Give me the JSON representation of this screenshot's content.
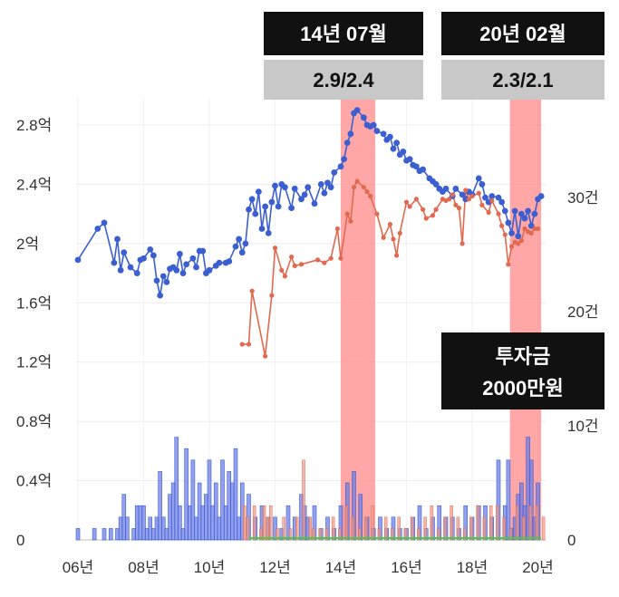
{
  "chart_data": {
    "type": "line",
    "xlabel": "",
    "ylabel": "",
    "x_ticks": [
      "06년",
      "08년",
      "10년",
      "12년",
      "14년",
      "16년",
      "18년",
      "20년"
    ],
    "xlim": [
      2006,
      2021
    ],
    "y_left_ticks": [
      "0",
      "0.4억",
      "0.8억",
      "1.2억",
      "1.6억",
      "2억",
      "2.4억",
      "2.8억"
    ],
    "ylim_left": [
      0,
      2.8
    ],
    "y_right_ticks": [
      "0",
      "10건",
      "20건",
      "30건"
    ],
    "ylim_right": [
      0,
      30
    ],
    "grid": true,
    "highlights": [
      {
        "from": 2014.0,
        "to": 2015.05,
        "label": "14년 07월",
        "value": "2.9/2.4"
      },
      {
        "from": 2019.15,
        "to": 2020.1,
        "label": "20년 02월",
        "value": "2.3/2.1"
      }
    ],
    "annotation": {
      "line1": "투자금",
      "line2": "2000만원"
    },
    "colors": {
      "sale": "#3b5fd1",
      "jeonse": "#e0694f",
      "volume_sale": "#6677e6",
      "volume_jeonse": "#ee9a8a",
      "highlight": "#ff8a8a",
      "flat": "#44cc44"
    },
    "series": [
      {
        "kind": "line",
        "color_key": "sale",
        "points": [
          [
            2006.0,
            1.89
          ],
          [
            2006.6,
            2.1
          ],
          [
            2006.8,
            2.14
          ],
          [
            2007.1,
            1.87
          ],
          [
            2007.2,
            2.03
          ],
          [
            2007.3,
            1.82
          ],
          [
            2007.4,
            1.94
          ],
          [
            2007.6,
            1.84
          ],
          [
            2007.8,
            1.8
          ],
          [
            2007.9,
            1.89
          ],
          [
            2008.0,
            1.9
          ],
          [
            2008.2,
            1.96
          ],
          [
            2008.3,
            1.92
          ],
          [
            2008.4,
            1.75
          ],
          [
            2008.5,
            1.65
          ],
          [
            2008.6,
            1.78
          ],
          [
            2008.7,
            1.74
          ],
          [
            2008.8,
            1.83
          ],
          [
            2008.9,
            1.84
          ],
          [
            2009.0,
            1.82
          ],
          [
            2009.1,
            1.93
          ],
          [
            2009.2,
            1.8
          ],
          [
            2009.3,
            1.86
          ],
          [
            2009.5,
            1.9
          ],
          [
            2009.6,
            1.84
          ],
          [
            2009.7,
            1.95
          ],
          [
            2009.8,
            1.95
          ],
          [
            2009.9,
            1.8
          ],
          [
            2010.0,
            1.82
          ],
          [
            2010.2,
            1.85
          ],
          [
            2010.3,
            1.87
          ],
          [
            2010.5,
            1.87
          ],
          [
            2010.6,
            1.88
          ],
          [
            2010.8,
            1.98
          ],
          [
            2010.9,
            2.03
          ],
          [
            2011.0,
            1.94
          ],
          [
            2011.1,
            2.0
          ],
          [
            2011.2,
            2.23
          ],
          [
            2011.3,
            2.3
          ],
          [
            2011.4,
            2.2
          ],
          [
            2011.5,
            2.35
          ],
          [
            2011.6,
            2.1
          ],
          [
            2011.7,
            2.25
          ],
          [
            2011.8,
            2.07
          ],
          [
            2011.9,
            2.28
          ],
          [
            2012.0,
            2.39
          ],
          [
            2012.1,
            2.25
          ],
          [
            2012.2,
            2.4
          ],
          [
            2012.3,
            2.38
          ],
          [
            2012.5,
            2.24
          ],
          [
            2012.6,
            2.37
          ],
          [
            2012.8,
            2.3
          ],
          [
            2012.9,
            2.33
          ],
          [
            2013.0,
            2.38
          ],
          [
            2013.2,
            2.27
          ],
          [
            2013.4,
            2.4
          ],
          [
            2013.5,
            2.34
          ],
          [
            2013.6,
            2.41
          ],
          [
            2013.7,
            2.38
          ],
          [
            2013.8,
            2.48
          ],
          [
            2014.0,
            2.52
          ],
          [
            2014.1,
            2.57
          ],
          [
            2014.2,
            2.68
          ],
          [
            2014.3,
            2.74
          ],
          [
            2014.4,
            2.88
          ],
          [
            2014.5,
            2.9
          ],
          [
            2014.7,
            2.85
          ],
          [
            2014.8,
            2.8
          ],
          [
            2014.9,
            2.79
          ],
          [
            2015.0,
            2.8
          ],
          [
            2015.1,
            2.76
          ],
          [
            2015.3,
            2.74
          ],
          [
            2015.4,
            2.7
          ],
          [
            2015.5,
            2.72
          ],
          [
            2015.6,
            2.64
          ],
          [
            2015.7,
            2.68
          ],
          [
            2015.8,
            2.6
          ],
          [
            2015.9,
            2.62
          ],
          [
            2016.0,
            2.56
          ],
          [
            2016.1,
            2.57
          ],
          [
            2016.2,
            2.53
          ],
          [
            2016.3,
            2.52
          ],
          [
            2016.4,
            2.49
          ],
          [
            2016.5,
            2.5
          ],
          [
            2016.7,
            2.44
          ],
          [
            2016.8,
            2.42
          ],
          [
            2016.9,
            2.4
          ],
          [
            2017.0,
            2.37
          ],
          [
            2017.1,
            2.35
          ],
          [
            2017.2,
            2.37
          ],
          [
            2017.4,
            2.32
          ],
          [
            2017.5,
            2.37
          ],
          [
            2017.7,
            2.33
          ],
          [
            2017.8,
            2.3
          ],
          [
            2017.9,
            2.35
          ],
          [
            2018.0,
            2.33
          ],
          [
            2018.2,
            2.44
          ],
          [
            2018.3,
            2.4
          ],
          [
            2018.4,
            2.31
          ],
          [
            2018.5,
            2.28
          ],
          [
            2018.6,
            2.32
          ],
          [
            2018.8,
            2.31
          ],
          [
            2018.9,
            2.28
          ],
          [
            2019.0,
            2.22
          ],
          [
            2019.1,
            2.14
          ],
          [
            2019.2,
            2.07
          ],
          [
            2019.3,
            2.22
          ],
          [
            2019.4,
            2.05
          ],
          [
            2019.5,
            2.2
          ],
          [
            2019.6,
            2.17
          ],
          [
            2019.7,
            2.22
          ],
          [
            2019.8,
            2.12
          ],
          [
            2019.9,
            2.2
          ],
          [
            2020.0,
            2.3
          ],
          [
            2020.1,
            2.32
          ]
        ]
      },
      {
        "kind": "line",
        "color_key": "jeonse",
        "points": [
          [
            2011.0,
            1.32
          ],
          [
            2011.2,
            1.32
          ],
          [
            2011.3,
            1.68
          ],
          [
            2011.7,
            1.24
          ],
          [
            2011.9,
            1.65
          ],
          [
            2012.0,
            1.97
          ],
          [
            2012.2,
            1.82
          ],
          [
            2012.3,
            1.78
          ],
          [
            2012.5,
            1.91
          ],
          [
            2012.6,
            1.85
          ],
          [
            2012.8,
            1.86
          ],
          [
            2013.3,
            1.89
          ],
          [
            2013.5,
            1.87
          ],
          [
            2013.7,
            1.9
          ],
          [
            2013.9,
            2.1
          ],
          [
            2014.0,
            1.9
          ],
          [
            2014.2,
            2.2
          ],
          [
            2014.3,
            2.15
          ],
          [
            2014.4,
            2.38
          ],
          [
            2014.5,
            2.42
          ],
          [
            2014.7,
            2.38
          ],
          [
            2014.8,
            2.35
          ],
          [
            2014.9,
            2.32
          ],
          [
            2015.1,
            2.2
          ],
          [
            2015.3,
            2.04
          ],
          [
            2015.5,
            2.13
          ],
          [
            2015.6,
            2.03
          ],
          [
            2015.7,
            1.92
          ],
          [
            2015.8,
            2.07
          ],
          [
            2016.0,
            2.28
          ],
          [
            2016.1,
            2.25
          ],
          [
            2016.3,
            2.3
          ],
          [
            2016.5,
            2.23
          ],
          [
            2016.6,
            2.17
          ],
          [
            2016.8,
            2.19
          ],
          [
            2016.9,
            2.23
          ],
          [
            2017.1,
            2.3
          ],
          [
            2017.2,
            2.29
          ],
          [
            2017.3,
            2.3
          ],
          [
            2017.4,
            2.33
          ],
          [
            2017.5,
            2.26
          ],
          [
            2017.6,
            2.24
          ],
          [
            2017.7,
            2.0
          ],
          [
            2017.8,
            2.36
          ],
          [
            2017.9,
            2.3
          ],
          [
            2018.0,
            2.32
          ],
          [
            2018.2,
            2.34
          ],
          [
            2018.3,
            2.26
          ],
          [
            2018.5,
            2.21
          ],
          [
            2018.6,
            2.29
          ],
          [
            2018.8,
            2.2
          ],
          [
            2018.9,
            2.12
          ],
          [
            2019.0,
            2.06
          ],
          [
            2019.1,
            1.86
          ],
          [
            2019.2,
            1.98
          ],
          [
            2019.3,
            2.01
          ],
          [
            2019.4,
            2.0
          ],
          [
            2019.5,
            2.02
          ],
          [
            2019.6,
            2.1
          ],
          [
            2019.7,
            2.08
          ],
          [
            2019.8,
            2.07
          ],
          [
            2019.9,
            2.1
          ],
          [
            2020.0,
            2.1
          ]
        ]
      }
    ],
    "volume_sale": [
      [
        2006.0,
        1
      ],
      [
        2006.5,
        1
      ],
      [
        2006.8,
        1
      ],
      [
        2007.0,
        1
      ],
      [
        2007.2,
        1
      ],
      [
        2007.3,
        2
      ],
      [
        2007.4,
        4
      ],
      [
        2007.5,
        2
      ],
      [
        2007.7,
        1
      ],
      [
        2007.8,
        3
      ],
      [
        2007.9,
        3
      ],
      [
        2008.0,
        3
      ],
      [
        2008.1,
        1
      ],
      [
        2008.2,
        2
      ],
      [
        2008.3,
        1
      ],
      [
        2008.4,
        2
      ],
      [
        2008.5,
        6
      ],
      [
        2008.6,
        2
      ],
      [
        2008.7,
        1
      ],
      [
        2008.8,
        4
      ],
      [
        2008.9,
        5
      ],
      [
        2009.0,
        9
      ],
      [
        2009.1,
        3
      ],
      [
        2009.2,
        1
      ],
      [
        2009.3,
        8
      ],
      [
        2009.4,
        3
      ],
      [
        2009.5,
        7
      ],
      [
        2009.6,
        2
      ],
      [
        2009.7,
        5
      ],
      [
        2009.8,
        3
      ],
      [
        2009.9,
        4
      ],
      [
        2010.0,
        7
      ],
      [
        2010.1,
        3
      ],
      [
        2010.2,
        5
      ],
      [
        2010.3,
        2
      ],
      [
        2010.4,
        7
      ],
      [
        2010.5,
        3
      ],
      [
        2010.6,
        6
      ],
      [
        2010.7,
        5
      ],
      [
        2010.8,
        8
      ],
      [
        2010.9,
        2
      ],
      [
        2011.0,
        5
      ],
      [
        2011.2,
        4
      ],
      [
        2011.4,
        2
      ],
      [
        2011.6,
        3
      ],
      [
        2011.8,
        2
      ],
      [
        2012.0,
        2
      ],
      [
        2012.2,
        1
      ],
      [
        2012.4,
        3
      ],
      [
        2012.6,
        2
      ],
      [
        2012.8,
        4
      ],
      [
        2012.9,
        3
      ],
      [
        2013.0,
        2
      ],
      [
        2013.2,
        3
      ],
      [
        2013.4,
        1
      ],
      [
        2013.6,
        2
      ],
      [
        2013.8,
        1
      ],
      [
        2014.0,
        3
      ],
      [
        2014.2,
        5
      ],
      [
        2014.4,
        6
      ],
      [
        2014.6,
        4
      ],
      [
        2014.8,
        2
      ],
      [
        2015.0,
        1
      ],
      [
        2015.2,
        2
      ],
      [
        2015.4,
        1
      ],
      [
        2015.6,
        2
      ],
      [
        2015.8,
        1
      ],
      [
        2016.0,
        1
      ],
      [
        2016.2,
        2
      ],
      [
        2016.4,
        3
      ],
      [
        2016.6,
        1
      ],
      [
        2016.8,
        2
      ],
      [
        2017.0,
        3
      ],
      [
        2017.2,
        2
      ],
      [
        2017.4,
        2
      ],
      [
        2017.6,
        1
      ],
      [
        2017.8,
        3
      ],
      [
        2018.0,
        2
      ],
      [
        2018.2,
        3
      ],
      [
        2018.4,
        3
      ],
      [
        2018.6,
        2
      ],
      [
        2018.8,
        7
      ],
      [
        2019.0,
        3
      ],
      [
        2019.1,
        7
      ],
      [
        2019.2,
        1
      ],
      [
        2019.3,
        2
      ],
      [
        2019.4,
        4
      ],
      [
        2019.5,
        5
      ],
      [
        2019.6,
        3
      ],
      [
        2019.7,
        9
      ],
      [
        2019.8,
        7
      ],
      [
        2019.9,
        2
      ],
      [
        2020.0,
        5
      ]
    ],
    "volume_jeonse": [
      [
        2011.0,
        3
      ],
      [
        2011.1,
        2
      ],
      [
        2011.3,
        3
      ],
      [
        2011.5,
        1
      ],
      [
        2011.6,
        3
      ],
      [
        2011.7,
        2
      ],
      [
        2011.8,
        3
      ],
      [
        2012.0,
        1
      ],
      [
        2012.2,
        2
      ],
      [
        2012.4,
        1
      ],
      [
        2012.6,
        2
      ],
      [
        2012.8,
        7
      ],
      [
        2013.0,
        2
      ],
      [
        2013.1,
        1
      ],
      [
        2013.3,
        1
      ],
      [
        2013.5,
        1
      ],
      [
        2013.7,
        2
      ],
      [
        2013.9,
        1
      ],
      [
        2014.1,
        3
      ],
      [
        2014.3,
        2
      ],
      [
        2014.5,
        1
      ],
      [
        2014.7,
        2
      ],
      [
        2014.9,
        3
      ],
      [
        2015.1,
        1
      ],
      [
        2015.3,
        2
      ],
      [
        2015.5,
        1
      ],
      [
        2015.7,
        2
      ],
      [
        2015.9,
        1
      ],
      [
        2016.1,
        2
      ],
      [
        2016.3,
        1
      ],
      [
        2016.5,
        2
      ],
      [
        2016.7,
        3
      ],
      [
        2016.9,
        1
      ],
      [
        2017.1,
        2
      ],
      [
        2017.3,
        3
      ],
      [
        2017.5,
        2
      ],
      [
        2017.7,
        1
      ],
      [
        2017.9,
        2
      ],
      [
        2018.1,
        3
      ],
      [
        2018.3,
        2
      ],
      [
        2018.5,
        3
      ],
      [
        2018.7,
        3
      ],
      [
        2018.9,
        2
      ],
      [
        2019.1,
        1
      ],
      [
        2019.3,
        3
      ],
      [
        2019.5,
        2
      ],
      [
        2019.7,
        3
      ],
      [
        2019.9,
        3
      ],
      [
        2020.1,
        2
      ]
    ]
  }
}
